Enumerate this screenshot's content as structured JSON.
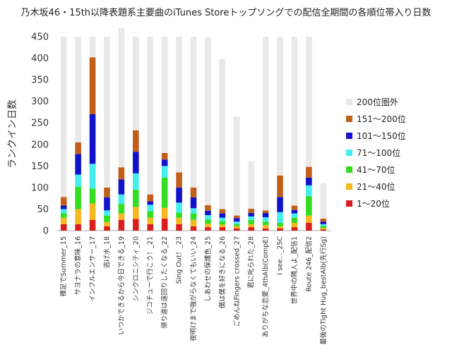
{
  "chart_data": {
    "type": "bar",
    "stacked": true,
    "title": "乃木坂46・15th以降表題系主要曲のiTunes Storeトップソングでの配信全期間の各順位帯入り日数",
    "ylabel": "ランクイン日数",
    "xlabel": "",
    "ylim": [
      0,
      450
    ],
    "yticks": [
      0,
      50,
      100,
      150,
      200,
      250,
      300,
      350,
      400,
      450
    ],
    "grid": false,
    "legend_position": "right",
    "categories": [
      "裸足でSummer_15",
      "サヨナラの意味_16",
      "インフルエンサー_17",
      "逃げ水_18",
      "いつかできるから今日できる_19",
      "シンクロニシティ_20",
      "ジコチューで行こう！_21",
      "帰り道は遠回りしたくなる_22",
      "Sing Out！_23",
      "夜明けまで強がらなくてもいい_24",
      "しあわせの保護色_25",
      "僕は僕を好きになる_26",
      "ごめんねFingers crossed_27",
      "君に叱られた_28",
      "ありがちな恋愛_4thAlb(CompE)",
      "I see..._25C",
      "世界中の隣人よ_配信1",
      "Route 246_配信2",
      "最後のTight Hug_bestAlb(先行Sg)"
    ],
    "series": [
      {
        "name": "1～20位",
        "color": "#d81e1e",
        "values": [
          15,
          15,
          25,
          10,
          25,
          27,
          15,
          28,
          15,
          10,
          8,
          8,
          5,
          8,
          5,
          5,
          8,
          18,
          3
        ]
      },
      {
        "name": "21～40位",
        "color": "#f5b820",
        "values": [
          15,
          35,
          38,
          10,
          15,
          28,
          15,
          25,
          15,
          15,
          8,
          6,
          5,
          7,
          8,
          5,
          10,
          17,
          3
        ]
      },
      {
        "name": "41～70位",
        "color": "#33dd22",
        "values": [
          10,
          52,
          35,
          15,
          22,
          40,
          15,
          70,
          12,
          15,
          10,
          8,
          5,
          10,
          8,
          8,
          12,
          45,
          5
        ]
      },
      {
        "name": "71～100位",
        "color": "#44eeee",
        "values": [
          10,
          28,
          57,
          12,
          22,
          38,
          15,
          27,
          23,
          12,
          10,
          8,
          6,
          8,
          10,
          25,
          10,
          25,
          4
        ]
      },
      {
        "name": "101～150位",
        "color": "#1212cc",
        "values": [
          8,
          48,
          115,
          30,
          35,
          50,
          8,
          15,
          35,
          25,
          10,
          10,
          8,
          8,
          10,
          35,
          8,
          18,
          6
        ]
      },
      {
        "name": "151～200位",
        "color": "#c05e1a",
        "values": [
          20,
          27,
          132,
          23,
          28,
          50,
          16,
          15,
          35,
          23,
          13,
          10,
          6,
          10,
          6,
          50,
          10,
          25,
          7
        ]
      },
      {
        "name": "200位圏外",
        "color": "#e8e8e8",
        "values": [
          372,
          245,
          48,
          350,
          323,
          217,
          366,
          270,
          315,
          350,
          390,
          348,
          230,
          110,
          403,
          322,
          392,
          302,
          82
        ]
      }
    ],
    "legend_order": [
      "200位圏外",
      "151～200位",
      "101～150位",
      "71～100位",
      "41～70位",
      "21～40位",
      "1～20位"
    ]
  }
}
